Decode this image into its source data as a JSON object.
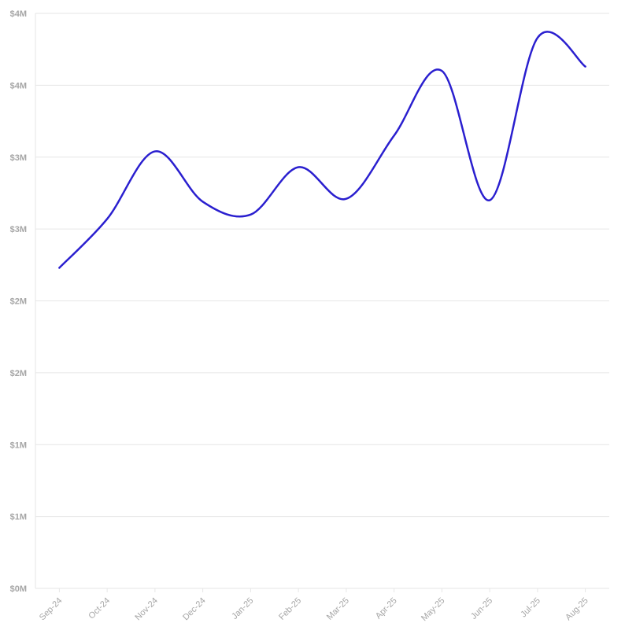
{
  "chart_data": {
    "type": "line",
    "categories": [
      "Sep-24",
      "Oct-24",
      "Nov-24",
      "Dec-24",
      "Jan-25",
      "Feb-25",
      "Mar-25",
      "Apr-25",
      "May-25",
      "Jun-25",
      "Jul-25",
      "Aug-25"
    ],
    "series": [
      {
        "values": [
          2.23,
          2.57,
          3.04,
          2.69,
          2.6,
          2.93,
          2.71,
          3.15,
          3.6,
          2.7,
          3.83,
          3.63
        ]
      }
    ],
    "y_ticks": [
      {
        "value": 0,
        "label": "$0M"
      },
      {
        "value": 0.5,
        "label": "$1M"
      },
      {
        "value": 1.0,
        "label": "$1M"
      },
      {
        "value": 1.5,
        "label": "$2M"
      },
      {
        "value": 2.0,
        "label": "$2M"
      },
      {
        "value": 2.5,
        "label": "$3M"
      },
      {
        "value": 3.0,
        "label": "$3M"
      },
      {
        "value": 3.5,
        "label": "$4M"
      },
      {
        "value": 4.0,
        "label": "$4M"
      }
    ],
    "ylim": [
      0,
      4
    ],
    "grid": true,
    "line_color": "#2a1fcf"
  }
}
